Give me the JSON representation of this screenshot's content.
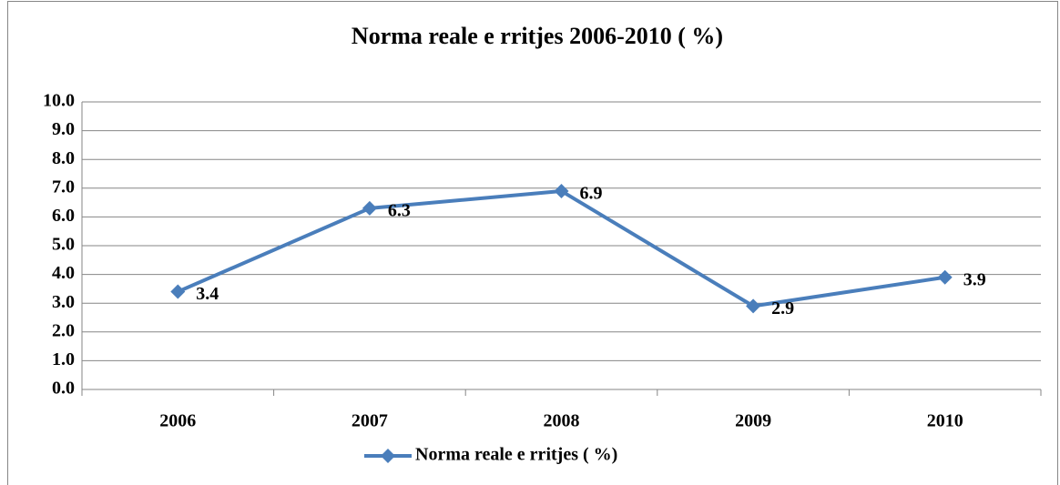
{
  "chart_data": {
    "type": "line",
    "title": "Norma reale e rritjes  2006-2010 ( %)",
    "categories": [
      "2006",
      "2007",
      "2008",
      "2009",
      "2010"
    ],
    "series": [
      {
        "name": "Norma reale e rritjes ( %)",
        "color": "#4a7ebb",
        "values": [
          3.4,
          6.3,
          6.9,
          2.9,
          3.9
        ]
      }
    ],
    "ylim": [
      0,
      10
    ],
    "yticks": [
      {
        "value": 0,
        "label": "0.0"
      },
      {
        "value": 1,
        "label": "1.0"
      },
      {
        "value": 2,
        "label": "2.0"
      },
      {
        "value": 3,
        "label": "3.0"
      },
      {
        "value": 4,
        "label": "4.0"
      },
      {
        "value": 5,
        "label": "5.0"
      },
      {
        "value": 6,
        "label": "6.0"
      },
      {
        "value": 7,
        "label": "7.0"
      },
      {
        "value": 8,
        "label": "8.0"
      },
      {
        "value": 9,
        "label": "9.0"
      },
      {
        "value": 10,
        "label": "10.0"
      }
    ],
    "grid": true,
    "legend": "bottom"
  }
}
